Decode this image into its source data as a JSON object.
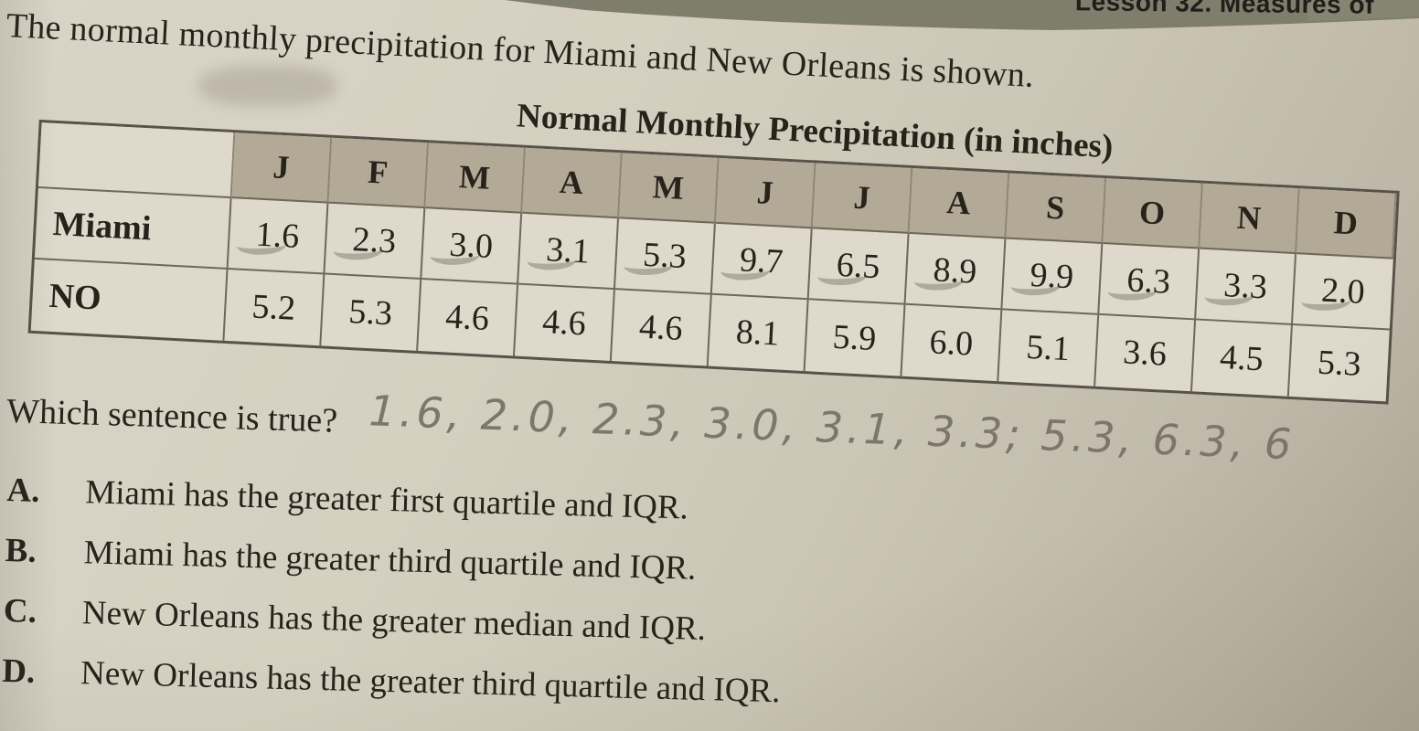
{
  "lesson_header": "Lesson 32. Measures of",
  "intro": "The normal monthly precipitation for Miami and New Orleans is shown.",
  "table": {
    "title": "Normal Monthly Precipitation (in inches)",
    "months": [
      "J",
      "F",
      "M",
      "A",
      "M",
      "J",
      "J",
      "A",
      "S",
      "O",
      "N",
      "D"
    ],
    "rows": [
      {
        "label": "Miami",
        "values": [
          "1.6",
          "2.3",
          "3.0",
          "3.1",
          "5.3",
          "9.7",
          "6.5",
          "8.9",
          "9.9",
          "6.3",
          "3.3",
          "2.0"
        ],
        "pencil_marks": true
      },
      {
        "label": "NO",
        "values": [
          "5.2",
          "5.3",
          "4.6",
          "4.6",
          "4.6",
          "8.1",
          "5.9",
          "6.0",
          "5.1",
          "3.6",
          "4.5",
          "5.3"
        ],
        "pencil_marks": false
      }
    ]
  },
  "question": "Which sentence is true?",
  "handwriting": "1.6, 2.0, 2.3, 3.0, 3.1, 3.3; 5.3, 6.3, 6",
  "options": [
    {
      "letter": "A.",
      "text": "Miami has the greater first quartile and IQR."
    },
    {
      "letter": "B.",
      "text": "Miami has the greater third quartile and IQR."
    },
    {
      "letter": "C.",
      "text": "New Orleans has the greater median and IQR."
    },
    {
      "letter": "D.",
      "text": "New Orleans has the greater third quartile and IQR."
    }
  ],
  "colors": {
    "page": "#d5cfc0",
    "band": "#7f7d6c",
    "header_fill": "#b2aa97",
    "cell_fill": "#ded9ca",
    "table_border": "#57524a",
    "ink": "#27231b",
    "pencil": "#7d776b"
  }
}
